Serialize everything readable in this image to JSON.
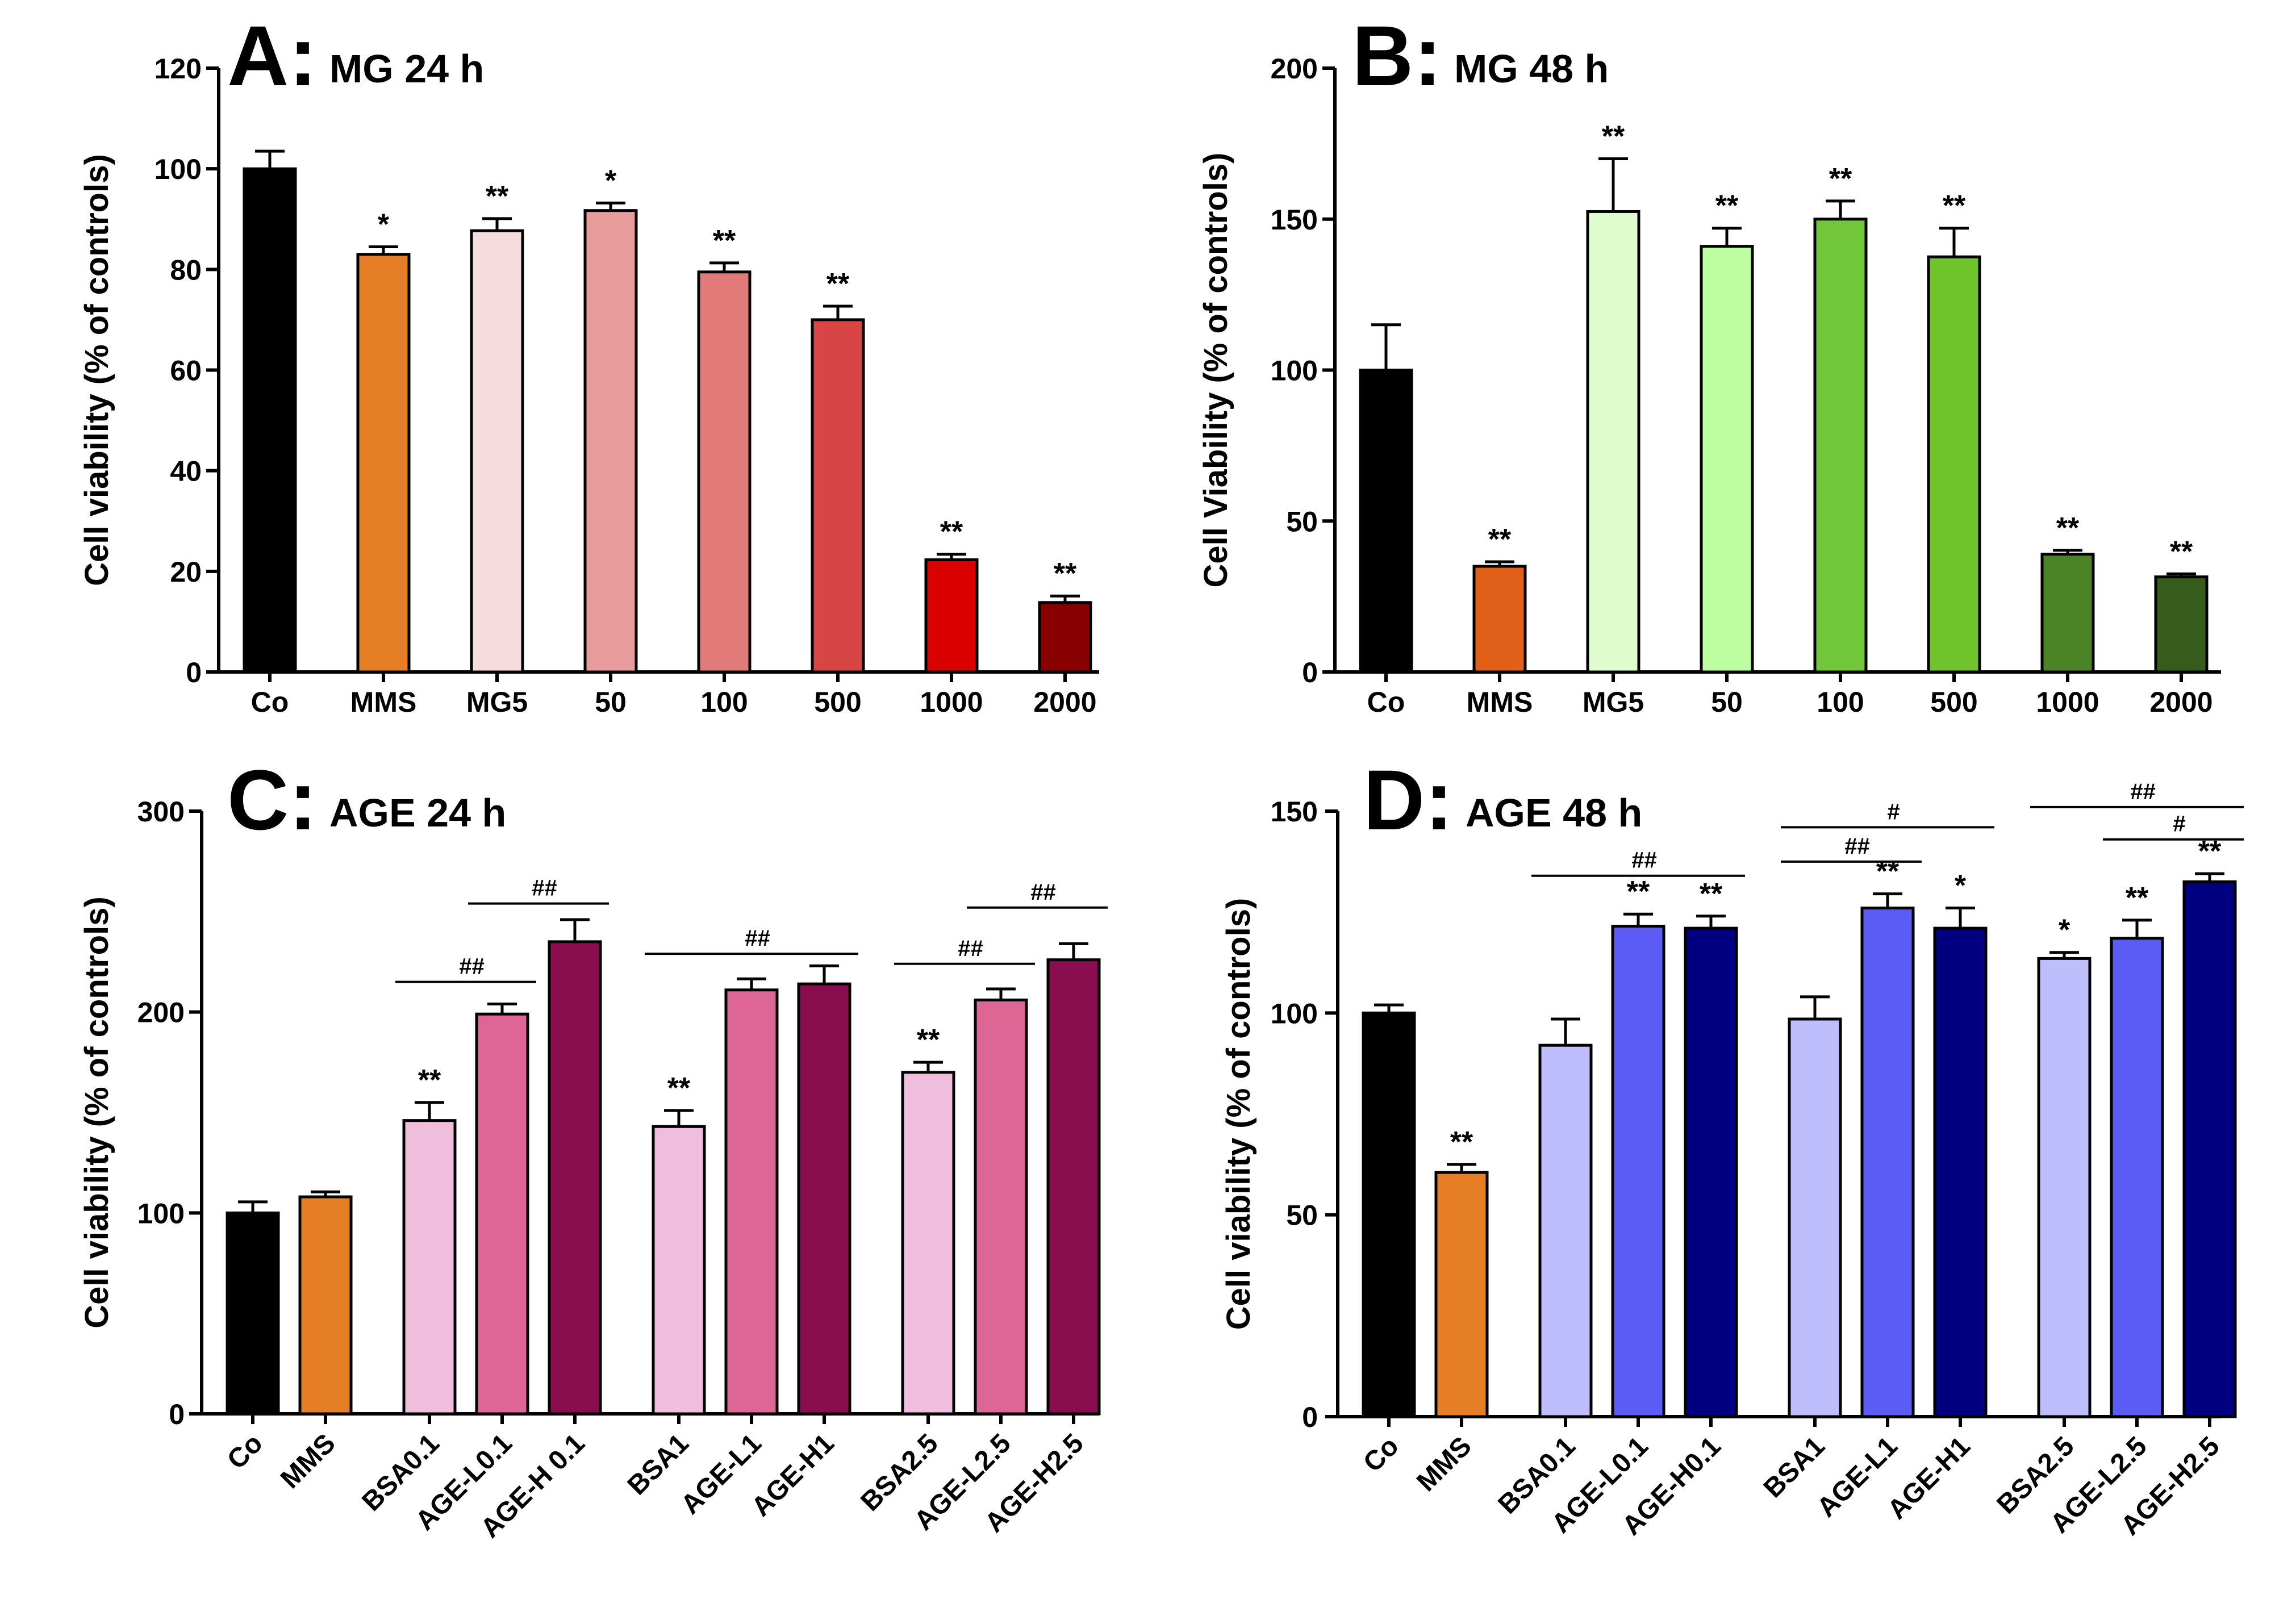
{
  "figure": {
    "background": "#ffffff"
  },
  "chart_data": [
    {
      "type": "bar",
      "panel_letter": "A:",
      "title": "MG 24 h",
      "ylabel": "Cell viability (% of controls)",
      "xlabel": "",
      "ylim": [
        0,
        120
      ],
      "yticks": [
        0,
        20,
        40,
        60,
        80,
        100,
        120
      ],
      "tick_labels_rotated": false,
      "groups": [
        8
      ],
      "categories": [
        "Co",
        "MMS",
        "MG5",
        "50",
        "100",
        "500",
        "1000",
        "2000"
      ],
      "values": [
        100,
        83,
        87.7,
        91.7,
        79.5,
        70,
        22.3,
        13.8
      ],
      "errors": [
        3.5,
        1.5,
        2.4,
        1.5,
        1.8,
        2.7,
        1.1,
        1.3
      ],
      "significance": [
        "",
        "*",
        "**",
        "*",
        "**",
        "**",
        "**",
        "**"
      ],
      "colors": [
        "#000000",
        "#E57E24",
        "#F6DCDC",
        "#E99C9C",
        "#E37A7A",
        "#D74545",
        "#DB0000",
        "#880000"
      ],
      "comparisons": []
    },
    {
      "type": "bar",
      "panel_letter": "B:",
      "title": "MG 48 h",
      "ylabel": "Cell Viability (% of controls)",
      "xlabel": "",
      "ylim": [
        0,
        200
      ],
      "yticks": [
        0,
        50,
        100,
        150,
        200
      ],
      "tick_labels_rotated": false,
      "groups": [
        8
      ],
      "categories": [
        "Co",
        "MMS",
        "MG5",
        "50",
        "100",
        "500",
        "1000",
        "2000"
      ],
      "values": [
        100,
        35,
        152.5,
        141,
        150,
        137.5,
        39,
        31.5
      ],
      "errors": [
        15,
        1.5,
        17.5,
        6,
        6,
        9.5,
        1.3,
        1
      ],
      "significance": [
        "",
        "**",
        "**",
        "**",
        "**",
        "**",
        "**",
        "**"
      ],
      "colors": [
        "#000000",
        "#E0601A",
        "#DEFCCE",
        "#BDFFA0",
        "#72C639",
        "#6FC42C",
        "#4B8326",
        "#355C1A"
      ],
      "comparisons": []
    },
    {
      "type": "bar",
      "panel_letter": "C:",
      "title": "AGE 24 h",
      "ylabel": "Cell viability (% of controls)",
      "xlabel": "",
      "ylim": [
        0,
        300
      ],
      "yticks": [
        0,
        100,
        200,
        300
      ],
      "tick_labels_rotated": true,
      "groups": [
        2,
        3,
        3,
        3
      ],
      "categories": [
        "Co",
        "MMS",
        "BSA0.1",
        "AGE-L0.1",
        "AGE-H 0.1",
        "BSA1",
        "AGE-L1",
        "AGE-H1",
        "BSA2.5",
        "AGE-L2.5",
        "AGE-H2.5"
      ],
      "values": [
        100,
        108,
        146,
        199,
        235,
        143,
        211,
        214,
        170,
        206,
        226
      ],
      "errors": [
        5.5,
        2.5,
        9,
        5,
        11,
        8,
        5.5,
        9,
        5,
        5.5,
        8
      ],
      "significance": [
        "",
        "",
        "**",
        "",
        "",
        "**",
        "",
        "",
        "**",
        "",
        ""
      ],
      "colors": [
        "#000000",
        "#E57E24",
        "#EFBEDC",
        "#DE6694",
        "#8A0D4F",
        "#EFBEDC",
        "#DE6694",
        "#8A0D4F",
        "#EFBEDC",
        "#DE6694",
        "#8A0D4F"
      ],
      "comparisons": [
        {
          "from": 2,
          "to": 3,
          "y": 215,
          "label": "##"
        },
        {
          "from": 3,
          "to": 4,
          "y": 254,
          "label": "##"
        },
        {
          "from": 5,
          "to": 7,
          "y": 229,
          "label": "##"
        },
        {
          "from": 8,
          "to": 9,
          "y": 224,
          "label": "##"
        },
        {
          "from": 9,
          "to": 10,
          "y": 252,
          "label": "##"
        }
      ]
    },
    {
      "type": "bar",
      "panel_letter": "D:",
      "title": "AGE 48 h",
      "ylabel": "Cell viability (% of controls)",
      "xlabel": "",
      "ylim": [
        0,
        150
      ],
      "yticks": [
        0,
        50,
        100,
        150
      ],
      "tick_labels_rotated": true,
      "groups": [
        2,
        3,
        3,
        3
      ],
      "categories": [
        "Co",
        "MMS",
        "BSA0.1",
        "AGE-L0.1",
        "AGE-H0.1",
        "BSA1",
        "AGE-L1",
        "AGE-H1",
        "BSA2.5",
        "AGE-L2.5",
        "AGE-H2.5"
      ],
      "values": [
        100,
        60.5,
        92,
        121.5,
        121,
        98.5,
        126,
        121,
        113.5,
        118.5,
        132.5
      ],
      "errors": [
        2,
        2,
        6.5,
        3,
        3,
        5.5,
        3.5,
        5,
        1.5,
        4.5,
        2
      ],
      "significance": [
        "",
        "**",
        "",
        "**",
        "**",
        "",
        "**",
        "*",
        "*",
        "**",
        "**"
      ],
      "colors": [
        "#000000",
        "#E57E24",
        "#BEBEFC",
        "#5B5BF5",
        "#000080",
        "#BEBEFC",
        "#5B5BF5",
        "#000080",
        "#BEBEFC",
        "#5B5BF5",
        "#000080"
      ],
      "comparisons": [
        {
          "from": 2,
          "to": 4,
          "y": 134,
          "label": "##"
        },
        {
          "from": 5,
          "to": 6,
          "y": 137.5,
          "label": "##"
        },
        {
          "from": 5,
          "to": 7,
          "y": 146,
          "label": "#"
        },
        {
          "from": 9,
          "to": 10,
          "y": 143,
          "label": "#"
        },
        {
          "from": 8,
          "to": 10,
          "y": 151,
          "label": "##"
        }
      ]
    }
  ]
}
